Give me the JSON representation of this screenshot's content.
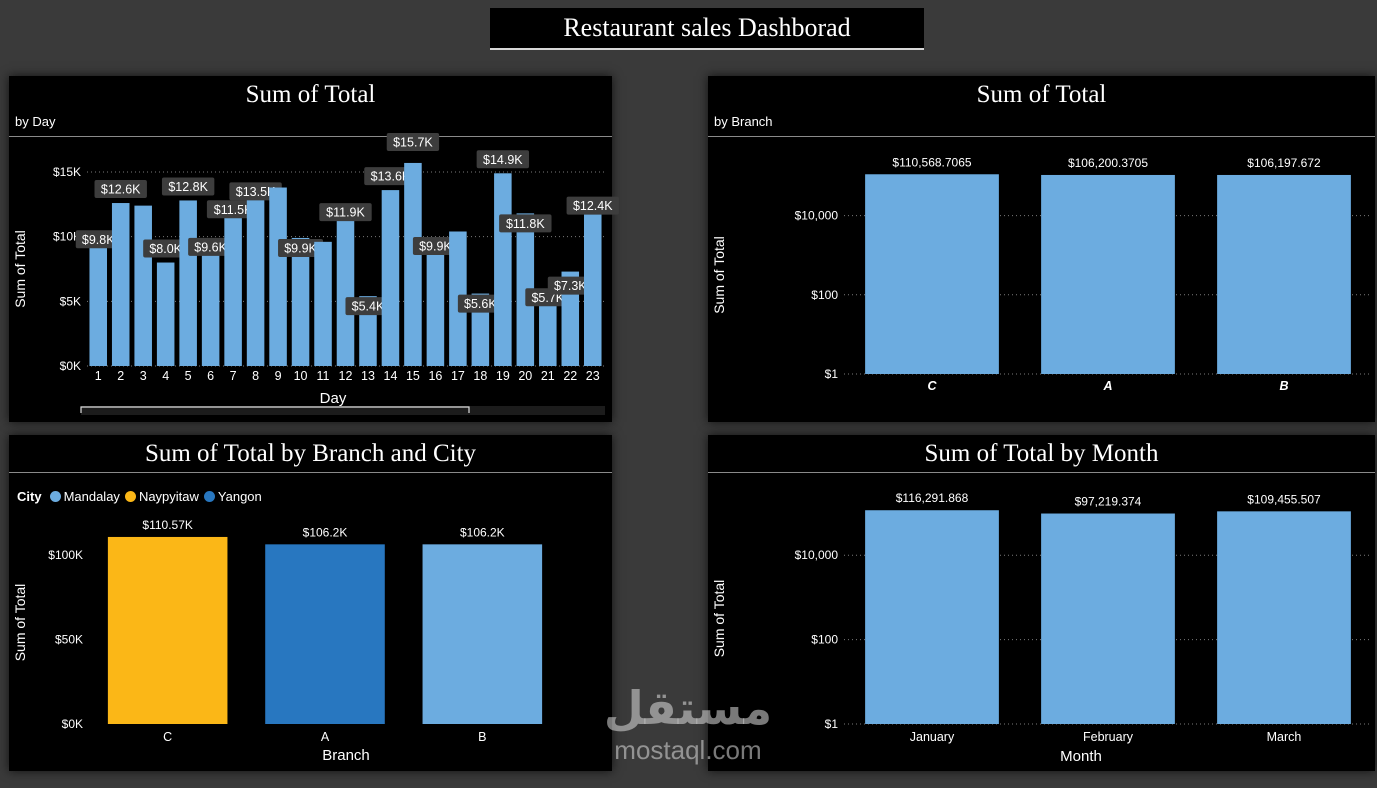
{
  "page": {
    "title": "Restaurant sales Dashborad"
  },
  "panels": {
    "day": {
      "title": "Sum of Total",
      "subtitle": "by Day",
      "xlabel": "Day",
      "ylabel": "Sum of Total"
    },
    "branch": {
      "title": "Sum of Total",
      "subtitle": "by Branch",
      "xlabel": "",
      "ylabel": "Sum of Total"
    },
    "branch_city": {
      "title": "Sum of Total by Branch and City",
      "xlabel": "Branch",
      "ylabel": "Sum of Total",
      "legend_title": "City",
      "legend": [
        {
          "name": "Mandalay",
          "color": "#6cace0"
        },
        {
          "name": "Naypyitaw",
          "color": "#fbb717"
        },
        {
          "name": "Yangon",
          "color": "#2877c0"
        }
      ]
    },
    "month": {
      "title": "Sum of Total by Month",
      "xlabel": "Month",
      "ylabel": "Sum of Total"
    }
  },
  "chart_data": [
    {
      "id": "day",
      "type": "bar",
      "title": "Sum of Total",
      "subtitle": "by Day",
      "xlabel": "Day",
      "ylabel": "Sum of Total",
      "categories": [
        "1",
        "2",
        "3",
        "4",
        "5",
        "6",
        "7",
        "8",
        "9",
        "10",
        "11",
        "12",
        "13",
        "14",
        "15",
        "16",
        "17",
        "18",
        "19",
        "20",
        "21",
        "22",
        "23"
      ],
      "values": [
        9800,
        12600,
        12400,
        8000,
        12800,
        9600,
        11500,
        13500,
        13800,
        9900,
        9600,
        11900,
        5400,
        13600,
        15700,
        9900,
        10400,
        5600,
        14900,
        11800,
        5700,
        7300,
        12400
      ],
      "data_labels": [
        "$9.8K",
        "$12.6K",
        "",
        "$8.0K",
        "$12.8K",
        "$9.6K",
        "$11.5K",
        "$13.5K",
        "",
        "$9.9K",
        "",
        "$11.9K",
        "$5.4K",
        "$13.6K",
        "$15.7K",
        "$9.9K",
        "",
        "$5.6K",
        "$14.9K",
        "$11.8K",
        "$5.7K",
        "$7.3K",
        "$12.4K"
      ],
      "ylim": [
        0,
        15000
      ],
      "yticks": [
        0,
        5000,
        10000,
        15000
      ],
      "ytick_labels": [
        "$0K",
        "$5K",
        "$10K",
        "$15K"
      ],
      "color": "#6cace0"
    },
    {
      "id": "branch",
      "type": "bar",
      "yscale": "log",
      "title": "Sum of Total",
      "subtitle": "by Branch",
      "ylabel": "Sum of Total",
      "categories": [
        "C",
        "A",
        "B"
      ],
      "values": [
        110568.7065,
        106200.3705,
        106197.672
      ],
      "data_labels": [
        "$110,568.7065",
        "$106,200.3705",
        "$106,197.672"
      ],
      "yticks": [
        1,
        100,
        10000
      ],
      "ytick_labels": [
        "$1",
        "$100",
        "$10,000"
      ],
      "color": "#6cace0"
    },
    {
      "id": "branch_city",
      "type": "bar",
      "title": "Sum of Total by Branch and City",
      "xlabel": "Branch",
      "ylabel": "Sum of Total",
      "categories": [
        "C",
        "A",
        "B"
      ],
      "values": [
        110570,
        106200,
        106200
      ],
      "cities": [
        "Naypyitaw",
        "Yangon",
        "Mandalay"
      ],
      "colors": [
        "#fbb717",
        "#2877c0",
        "#6cace0"
      ],
      "data_labels": [
        "$110.57K",
        "$106.2K",
        "$106.2K"
      ],
      "ylim": [
        0,
        120000
      ],
      "yticks": [
        0,
        50000,
        100000
      ],
      "ytick_labels": [
        "$0K",
        "$50K",
        "$100K"
      ]
    },
    {
      "id": "month",
      "type": "bar",
      "yscale": "log",
      "title": "Sum of Total by Month",
      "xlabel": "Month",
      "ylabel": "Sum of Total",
      "categories": [
        "January",
        "February",
        "March"
      ],
      "values": [
        116291.868,
        97219.374,
        109455.507
      ],
      "data_labels": [
        "$116,291.868",
        "$97,219.374",
        "$109,455.507"
      ],
      "yticks": [
        1,
        100,
        10000
      ],
      "ytick_labels": [
        "$1",
        "$100",
        "$10,000"
      ],
      "color": "#6cace0"
    }
  ],
  "watermark": {
    "arabic": "مستقل",
    "latin": "mostaql.com"
  }
}
